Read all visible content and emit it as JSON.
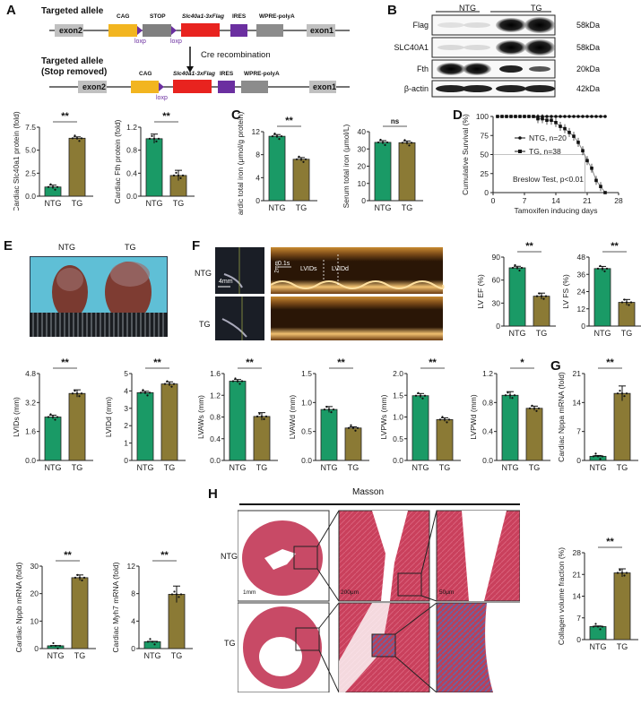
{
  "panels": {
    "A": {
      "label": "A",
      "title_top": "Targeted allele",
      "title_bottom_1": "Targeted allele",
      "title_bottom_2": "(Stop removed)",
      "arrow_text": "Cre recombination",
      "elements_top": [
        "exon2",
        "CAG",
        "STOP",
        "Slc40a1-3xFlag",
        "IRES",
        "WPRE-polyA",
        "exon1"
      ],
      "elements_bottom": [
        "exon2",
        "CAG",
        "Slc40a1-3xFlag",
        "IRES",
        "WPRE-polyA",
        "exon1"
      ],
      "loxp": "loxp",
      "colors": {
        "exon": "#c0c0c0",
        "cag": "#f2b520",
        "stop": "#808080",
        "slc": "#e8231f",
        "ires": "#6b2fa0",
        "wpre": "#8c8c8c",
        "loxp": "#6b2fa0"
      }
    },
    "B": {
      "label": "B",
      "groups": [
        "NTG",
        "TG"
      ],
      "rows": [
        {
          "name": "Flag",
          "kda": "58kDa"
        },
        {
          "name": "SLC40A1",
          "kda": "58kDa"
        },
        {
          "name": "Fth",
          "kda": "20kDa"
        },
        {
          "name": "β-actin",
          "kda": "42kDa"
        }
      ]
    },
    "C": {
      "label": "C"
    },
    "D": {
      "label": "D"
    },
    "E": {
      "label": "E",
      "groups": [
        "NTG",
        "TG"
      ]
    },
    "F": {
      "label": "F",
      "rows": [
        "NTG",
        "TG"
      ],
      "scale_2d": "4mm",
      "scale_y": "2mm",
      "scale_x": "0.1s",
      "lvids": "LVIDs",
      "lvidd": "LVIDd"
    },
    "G": {
      "label": "G"
    },
    "H": {
      "label": "H",
      "title": "Masson",
      "rows": [
        "NTG",
        "TG"
      ],
      "scales": [
        "1mm",
        "200μm",
        "50μm"
      ]
    }
  },
  "colors": {
    "ntg": "#1a9a66",
    "tg": "#8b7a35"
  },
  "chart_data": [
    {
      "id": "slc40a1_protein",
      "type": "bar",
      "title": "",
      "ylabel": "Cardiac Slc40a1 protein (fold)",
      "categories": [
        "NTG",
        "TG"
      ],
      "values": [
        1.0,
        6.3
      ],
      "errors": [
        0.2,
        0.15
      ],
      "yticks": [
        "0.0",
        "2.5",
        "5.0",
        "7.5"
      ],
      "ylim": [
        0,
        7.5
      ],
      "sig": "**"
    },
    {
      "id": "fth_protein",
      "type": "bar",
      "ylabel": "Cardiac Fth protein (fold)",
      "categories": [
        "NTG",
        "TG"
      ],
      "values": [
        1.0,
        0.36
      ],
      "errors": [
        0.08,
        0.09
      ],
      "yticks": [
        "0.0",
        "0.4",
        "0.8",
        "1.2"
      ],
      "ylim": [
        0,
        1.2
      ],
      "sig": "**"
    },
    {
      "id": "cardiac_iron",
      "type": "bar",
      "ylabel": "Cardic total iron (μmol/g protein)",
      "categories": [
        "NTG",
        "TG"
      ],
      "values": [
        11.2,
        7.2
      ],
      "errors": [
        0.3,
        0.3
      ],
      "yticks": [
        "0",
        "4",
        "8",
        "12"
      ],
      "ylim": [
        0,
        12
      ],
      "sig": "**"
    },
    {
      "id": "serum_iron",
      "type": "bar",
      "ylabel": "Serum total iron (μmol/L)",
      "categories": [
        "NTG",
        "TG"
      ],
      "values": [
        33.8,
        33.6
      ],
      "errors": [
        1.0,
        1.0
      ],
      "yticks": [
        "0",
        "10",
        "20",
        "30",
        "40"
      ],
      "ylim": [
        0,
        40
      ],
      "sig": "ns"
    },
    {
      "id": "survival",
      "type": "line",
      "ylabel": "Cumulative Survival (%)",
      "xlabel": "Tamoxifen inducing days",
      "xticks": [
        "0",
        "7",
        "14",
        "21",
        "28"
      ],
      "yticks": [
        "0",
        "25",
        "50",
        "75",
        "100"
      ],
      "xlim": [
        0,
        28
      ],
      "ylim": [
        0,
        100
      ],
      "series": [
        {
          "name": "NTG, n=20",
          "x": [
            1,
            2,
            3,
            4,
            5,
            6,
            7,
            8,
            9,
            10,
            11,
            12,
            13,
            14,
            15,
            16,
            17,
            18,
            19,
            20,
            21,
            22,
            23,
            24,
            25
          ],
          "y": [
            100,
            100,
            100,
            100,
            100,
            100,
            100,
            100,
            100,
            100,
            100,
            100,
            100,
            100,
            100,
            100,
            100,
            100,
            100,
            100,
            100,
            100,
            100,
            100,
            100
          ]
        },
        {
          "name": "TG, n=38",
          "x": [
            1,
            2,
            3,
            4,
            5,
            6,
            7,
            8,
            9,
            10,
            11,
            12,
            13,
            14,
            15,
            16,
            17,
            18,
            19,
            20,
            21,
            22,
            23,
            24,
            25
          ],
          "y": [
            100,
            100,
            100,
            100,
            100,
            100,
            100,
            100,
            100,
            97,
            97,
            95,
            95,
            92,
            87,
            84,
            79,
            74,
            66,
            55,
            42,
            32,
            16,
            8,
            0
          ]
        }
      ],
      "annotation": "Breslow Test, p<0.01"
    },
    {
      "id": "lv_ef",
      "type": "bar",
      "ylabel": "LV EF (%)",
      "categories": [
        "NTG",
        "TG"
      ],
      "values": [
        76,
        39
      ],
      "errors": [
        2,
        4
      ],
      "yticks": [
        "0",
        "30",
        "60",
        "90"
      ],
      "ylim": [
        0,
        90
      ],
      "sig": "**"
    },
    {
      "id": "lv_fs",
      "type": "bar",
      "ylabel": "LV FS (%)",
      "categories": [
        "NTG",
        "TG"
      ],
      "values": [
        40,
        16.5
      ],
      "errors": [
        1.5,
        2
      ],
      "yticks": [
        "0",
        "12",
        "24",
        "36",
        "48"
      ],
      "ylim": [
        0,
        48
      ],
      "sig": "**"
    },
    {
      "id": "lvids",
      "type": "bar",
      "ylabel": "LVIDs (mm)",
      "categories": [
        "NTG",
        "TG"
      ],
      "values": [
        2.4,
        3.7
      ],
      "errors": [
        0.1,
        0.2
      ],
      "yticks": [
        "0.0",
        "1.6",
        "3.2",
        "4.8"
      ],
      "ylim": [
        0,
        4.8
      ],
      "sig": "**"
    },
    {
      "id": "lvidd",
      "type": "bar",
      "ylabel": "LVIDd (mm)",
      "categories": [
        "NTG",
        "TG"
      ],
      "values": [
        3.9,
        4.4
      ],
      "errors": [
        0.08,
        0.12
      ],
      "yticks": [
        "0",
        "1",
        "2",
        "3",
        "4",
        "5"
      ],
      "ylim": [
        0,
        5
      ],
      "sig": "**"
    },
    {
      "id": "lvaws",
      "type": "bar",
      "ylabel": "LVAWs (mm)",
      "categories": [
        "NTG",
        "TG"
      ],
      "values": [
        1.46,
        0.81
      ],
      "errors": [
        0.03,
        0.07
      ],
      "yticks": [
        "0.0",
        "0.4",
        "0.8",
        "1.2",
        "1.6"
      ],
      "ylim": [
        0,
        1.6
      ],
      "sig": "**"
    },
    {
      "id": "lvawd",
      "type": "bar",
      "ylabel": "LVAWd (mm)",
      "categories": [
        "NTG",
        "TG"
      ],
      "values": [
        0.88,
        0.56
      ],
      "errors": [
        0.05,
        0.02
      ],
      "yticks": [
        "0.0",
        "0.5",
        "1.0",
        "1.5"
      ],
      "ylim": [
        0,
        1.5
      ],
      "sig": "**"
    },
    {
      "id": "lvpws",
      "type": "bar",
      "ylabel": "LVPWs (mm)",
      "categories": [
        "NTG",
        "TG"
      ],
      "values": [
        1.49,
        0.94
      ],
      "errors": [
        0.05,
        0.04
      ],
      "yticks": [
        "0.0",
        "0.5",
        "1.0",
        "1.5",
        "2.0"
      ],
      "ylim": [
        0,
        2.0
      ],
      "sig": "**"
    },
    {
      "id": "lvpwd",
      "type": "bar",
      "ylabel": "LVPWd (mm)",
      "categories": [
        "NTG",
        "TG"
      ],
      "values": [
        0.9,
        0.72
      ],
      "errors": [
        0.05,
        0.03
      ],
      "yticks": [
        "0.0",
        "0.4",
        "0.8",
        "1.2"
      ],
      "ylim": [
        0,
        1.2
      ],
      "sig": "*"
    },
    {
      "id": "nppa_mrna",
      "type": "bar",
      "ylabel": "Cardiac Nppa mRNA (fold)",
      "categories": [
        "NTG",
        "TG"
      ],
      "values": [
        1.0,
        16.2
      ],
      "errors": [
        0.2,
        1.8
      ],
      "yticks": [
        "0",
        "7",
        "14",
        "21"
      ],
      "ylim": [
        0,
        21
      ],
      "sig": "**"
    },
    {
      "id": "nppb_mrna",
      "type": "bar",
      "ylabel": "Cardiac Nppb mRNA (fold)",
      "categories": [
        "NTG",
        "TG"
      ],
      "values": [
        1.0,
        25.8
      ],
      "errors": [
        0.1,
        1.0
      ],
      "yticks": [
        "0",
        "10",
        "20",
        "30"
      ],
      "ylim": [
        0,
        30
      ],
      "sig": "**"
    },
    {
      "id": "myh7_mrna",
      "type": "bar",
      "ylabel": "Cardiac Myh7 mRNA (fold)",
      "categories": [
        "NTG",
        "TG"
      ],
      "values": [
        1.0,
        7.9
      ],
      "errors": [
        0.05,
        1.2
      ],
      "yticks": [
        "0",
        "4",
        "8",
        "12"
      ],
      "ylim": [
        0,
        12
      ],
      "sig": "**"
    },
    {
      "id": "collagen",
      "type": "bar",
      "ylabel": "Collagen volume fraction (%)",
      "categories": [
        "NTG",
        "TG"
      ],
      "values": [
        4.2,
        21.5
      ],
      "errors": [
        0.2,
        1.3
      ],
      "yticks": [
        "0",
        "7",
        "14",
        "21",
        "28"
      ],
      "ylim": [
        0,
        28
      ],
      "sig": "**"
    }
  ]
}
